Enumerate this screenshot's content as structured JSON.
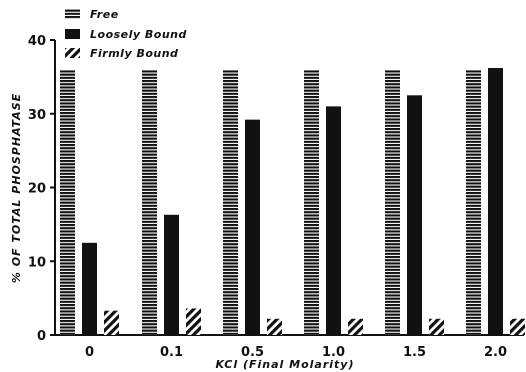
{
  "chart_data": {
    "type": "bar",
    "categories": [
      "0",
      "0.1",
      "0.5",
      "1.0",
      "1.5",
      "2.0"
    ],
    "series": [
      {
        "name": "Free",
        "values": [
          36,
          36,
          36,
          36,
          36,
          36
        ]
      },
      {
        "name": "Loosely Bound",
        "values": [
          12.5,
          16.3,
          29.2,
          31.0,
          32.5,
          36.2
        ]
      },
      {
        "name": "Firmly Bound",
        "values": [
          3.3,
          3.6,
          2.2,
          2.2,
          2.2,
          2.2
        ]
      }
    ],
    "title": "",
    "xlabel": "KCl (Final Molarity)",
    "ylabel": "% OF TOTAL PHOSPHATASE",
    "ylim": [
      0,
      40
    ],
    "yticks": [
      "0",
      "10",
      "20",
      "30",
      "40"
    ],
    "grid": false,
    "legend_position": "top-left"
  },
  "colors": {
    "ink": "#111111",
    "background": "#ffffff"
  }
}
